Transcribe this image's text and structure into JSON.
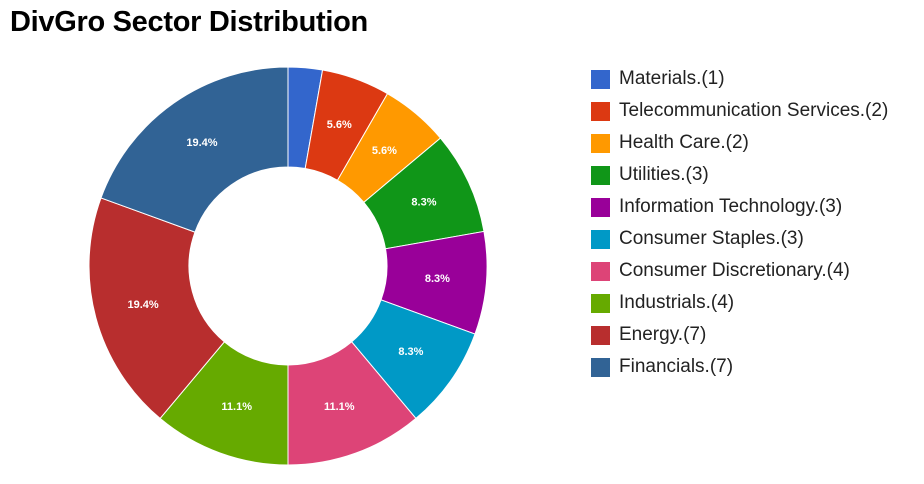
{
  "chart_data": {
    "type": "pie",
    "donut": true,
    "title": "DivGro Sector Distribution",
    "legend_position": "right",
    "slices": [
      {
        "name": "Materials",
        "legend_label": "Materials.(1)",
        "value": 1,
        "percent_label": "",
        "color": "#3366cc"
      },
      {
        "name": "Telecommunication Services",
        "legend_label": "Telecommunication Services.(2)",
        "value": 2,
        "percent_label": "5.6%",
        "color": "#dc3912"
      },
      {
        "name": "Health Care",
        "legend_label": "Health Care.(2)",
        "value": 2,
        "percent_label": "5.6%",
        "color": "#ff9900"
      },
      {
        "name": "Utilities",
        "legend_label": "Utilities.(3)",
        "value": 3,
        "percent_label": "8.3%",
        "color": "#109618"
      },
      {
        "name": "Information Technology",
        "legend_label": "Information Technology.(3)",
        "value": 3,
        "percent_label": "8.3%",
        "color": "#990099"
      },
      {
        "name": "Consumer Staples",
        "legend_label": "Consumer Staples.(3)",
        "value": 3,
        "percent_label": "8.3%",
        "color": "#0099c6"
      },
      {
        "name": "Consumer Discretionary",
        "legend_label": "Consumer Discretionary.(4)",
        "value": 4,
        "percent_label": "11.1%",
        "color": "#dd4477"
      },
      {
        "name": "Industrials",
        "legend_label": "Industrials.(4)",
        "value": 4,
        "percent_label": "11.1%",
        "color": "#66aa00"
      },
      {
        "name": "Energy",
        "legend_label": "Energy.(7)",
        "value": 7,
        "percent_label": "19.4%",
        "color": "#b82e2e"
      },
      {
        "name": "Financials",
        "legend_label": "Financials.(7)",
        "value": 7,
        "percent_label": "19.4%",
        "color": "#316395"
      }
    ]
  }
}
